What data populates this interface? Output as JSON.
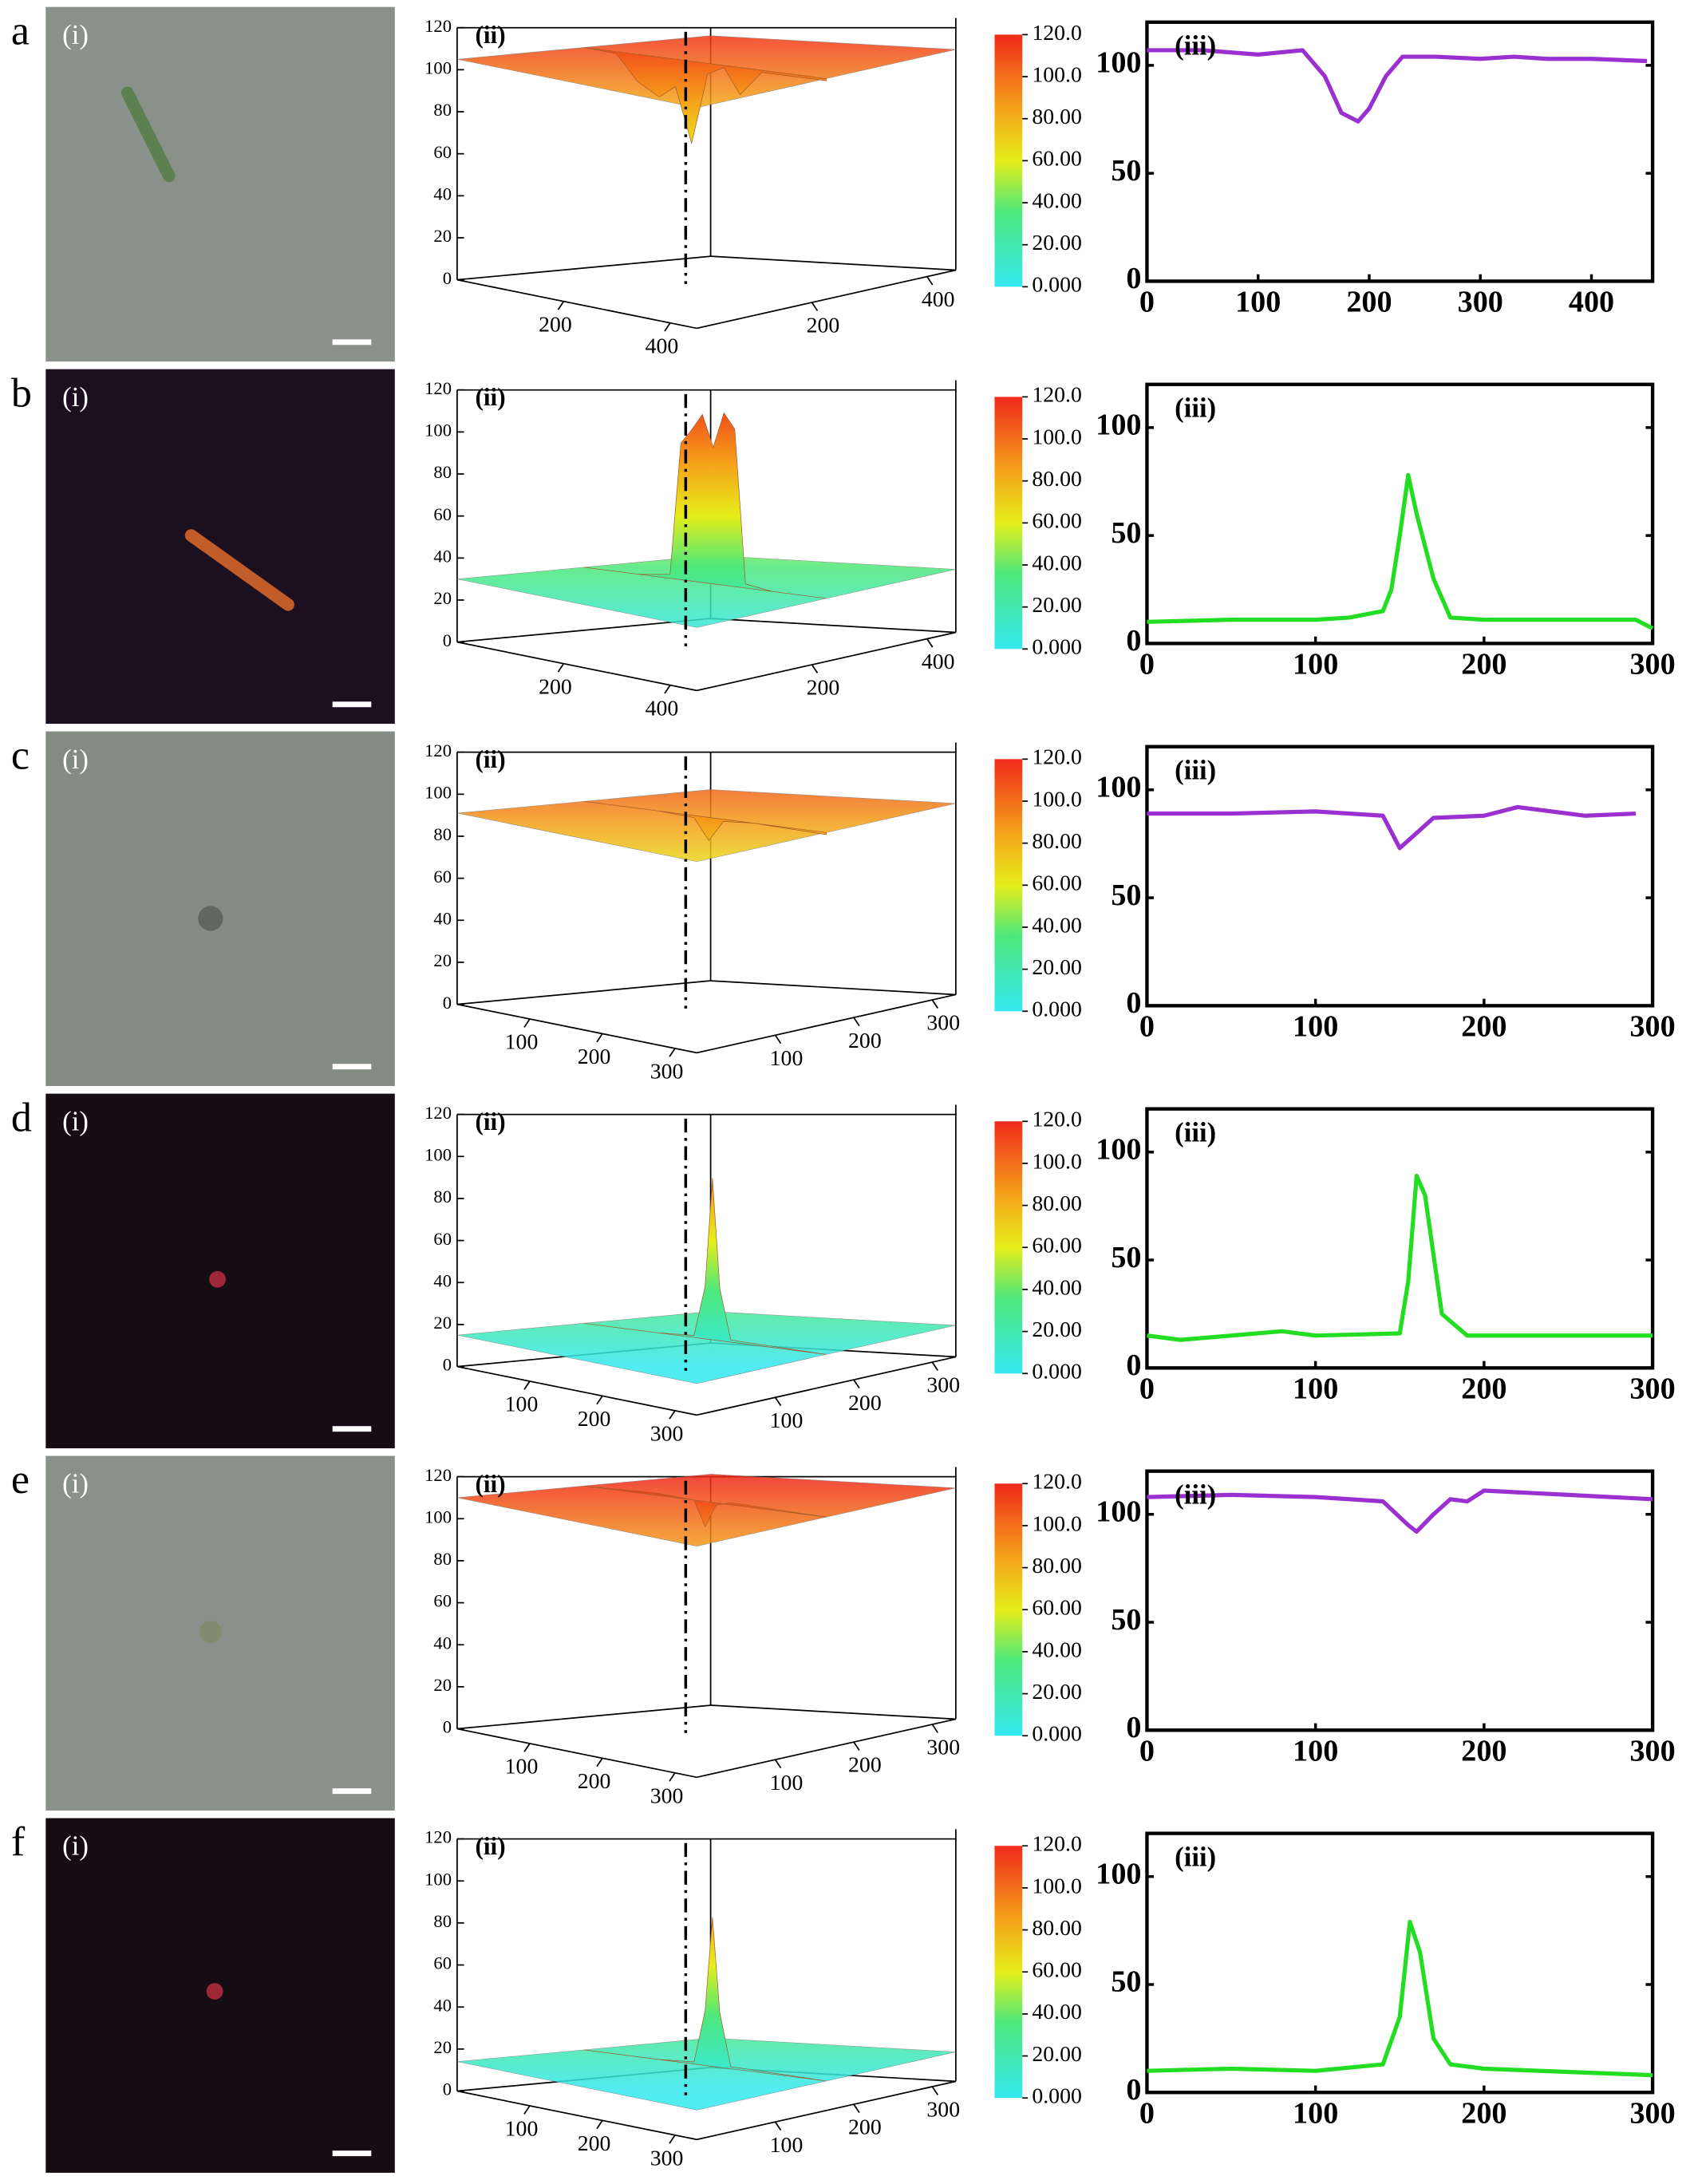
{
  "rows": [
    {
      "label": "a",
      "image": {
        "label": "(i)",
        "background": "#8a908a"
      }
    },
    {
      "label": "b",
      "image": {
        "label": "(i)",
        "background": "#1c1020"
      }
    },
    {
      "label": "c",
      "image": {
        "label": "(i)",
        "background": "#848a84"
      }
    },
    {
      "label": "d",
      "image": {
        "label": "(i)",
        "background": "#160c14"
      }
    },
    {
      "label": "e",
      "image": {
        "label": "(i)",
        "background": "#8a908a"
      }
    },
    {
      "label": "f",
      "image": {
        "label": "(i)",
        "background": "#160c14"
      }
    }
  ],
  "chart_data": [
    {
      "type": "surface",
      "label": "(ii)",
      "x": [
        0,
        60,
        100,
        140,
        170,
        200,
        230,
        260,
        290,
        330,
        450
      ],
      "values": [
        105,
        104,
        92,
        86,
        92,
        66,
        100,
        104,
        92,
        104,
        104
      ],
      "zlim": [
        0,
        120
      ],
      "zticks": [
        0,
        20,
        40,
        60,
        80,
        100,
        120
      ],
      "xlim": [
        0,
        450
      ],
      "xticks": [
        200,
        400
      ],
      "ylim": [
        0,
        450
      ],
      "yticks": [
        200,
        400
      ],
      "colorbar_ticks": [
        {
          "value": 120,
          "label": "120.0"
        },
        {
          "value": 100,
          "label": "100.0"
        },
        {
          "value": 80,
          "label": "80.00"
        },
        {
          "value": 60,
          "label": "60.00"
        },
        {
          "value": 40,
          "label": "40.00"
        },
        {
          "value": 20,
          "label": "20.00"
        },
        {
          "value": 0,
          "label": "0.000"
        }
      ]
    },
    {
      "type": "line",
      "label": "(iii)",
      "x": [
        0,
        50,
        100,
        140,
        160,
        175,
        190,
        200,
        215,
        230,
        260,
        300,
        330,
        360,
        400,
        450
      ],
      "series": [
        {
          "color": "#9b30d0",
          "values": [
            107,
            107,
            105,
            107,
            95,
            78,
            74,
            80,
            95,
            104,
            104,
            103,
            104,
            103,
            103,
            102
          ]
        }
      ],
      "xlim": [
        0,
        455
      ],
      "xticks": [
        0,
        100,
        200,
        300,
        400
      ],
      "ylim": [
        0,
        120
      ],
      "yticks": [
        0,
        50,
        100
      ]
    },
    {
      "type": "surface",
      "label": "(ii)",
      "x": [
        0,
        100,
        160,
        180,
        200,
        220,
        240,
        260,
        280,
        300,
        350,
        450
      ],
      "values": [
        30,
        30,
        32,
        95,
        102,
        110,
        95,
        112,
        105,
        32,
        30,
        30
      ],
      "zlim": [
        0,
        120
      ],
      "zticks": [
        0,
        20,
        40,
        60,
        80,
        100,
        120
      ],
      "xlim": [
        0,
        450
      ],
      "xticks": [
        200,
        400
      ],
      "ylim": [
        0,
        450
      ],
      "yticks": [
        200,
        400
      ],
      "colorbar_ticks": [
        {
          "value": 120,
          "label": "120.0"
        },
        {
          "value": 100,
          "label": "100.0"
        },
        {
          "value": 80,
          "label": "80.00"
        },
        {
          "value": 60,
          "label": "60.00"
        },
        {
          "value": 40,
          "label": "40.00"
        },
        {
          "value": 20,
          "label": "20.00"
        },
        {
          "value": 0,
          "label": "0.000"
        }
      ]
    },
    {
      "type": "line",
      "label": "(iii)",
      "x": [
        0,
        50,
        100,
        120,
        140,
        145,
        150,
        155,
        160,
        170,
        180,
        200,
        250,
        290,
        300
      ],
      "series": [
        {
          "color": "#22dd22",
          "values": [
            10,
            11,
            11,
            12,
            15,
            25,
            50,
            78,
            60,
            30,
            12,
            11,
            11,
            11,
            7
          ]
        }
      ],
      "xlim": [
        0,
        300
      ],
      "xticks": [
        0,
        100,
        200,
        300
      ],
      "ylim": [
        0,
        120
      ],
      "yticks": [
        0,
        50,
        100
      ]
    },
    {
      "type": "surface",
      "label": "(ii)",
      "x": [
        0,
        100,
        150,
        170,
        190,
        230,
        330
      ],
      "values": [
        91,
        91,
        90,
        80,
        90,
        91,
        90
      ],
      "zlim": [
        0,
        120
      ],
      "zticks": [
        0,
        20,
        40,
        60,
        80,
        100,
        120
      ],
      "xlim": [
        0,
        330
      ],
      "xticks": [
        100,
        200,
        300
      ],
      "ylim": [
        0,
        330
      ],
      "yticks": [
        100,
        200,
        300
      ],
      "colorbar_ticks": [
        {
          "value": 120,
          "label": "120.0"
        },
        {
          "value": 100,
          "label": "100.0"
        },
        {
          "value": 80,
          "label": "80.00"
        },
        {
          "value": 60,
          "label": "60.00"
        },
        {
          "value": 40,
          "label": "40.00"
        },
        {
          "value": 20,
          "label": "20.00"
        },
        {
          "value": 0,
          "label": "0.000"
        }
      ]
    },
    {
      "type": "line",
      "label": "(iii)",
      "x": [
        0,
        50,
        100,
        140,
        150,
        160,
        170,
        200,
        220,
        260,
        290
      ],
      "series": [
        {
          "color": "#9b30d0",
          "values": [
            89,
            89,
            90,
            88,
            73,
            80,
            87,
            88,
            92,
            88,
            89
          ]
        }
      ],
      "xlim": [
        0,
        300
      ],
      "xticks": [
        0,
        100,
        200,
        300
      ],
      "ylim": [
        0,
        120
      ],
      "yticks": [
        0,
        50,
        100
      ]
    },
    {
      "type": "surface",
      "label": "(ii)",
      "x": [
        0,
        100,
        150,
        165,
        175,
        185,
        200,
        330
      ],
      "values": [
        15,
        15,
        16,
        40,
        92,
        40,
        16,
        15
      ],
      "zlim": [
        0,
        120
      ],
      "zticks": [
        0,
        20,
        40,
        60,
        80,
        100,
        120
      ],
      "xlim": [
        0,
        330
      ],
      "xticks": [
        100,
        200,
        300
      ],
      "ylim": [
        0,
        330
      ],
      "yticks": [
        100,
        200,
        300
      ],
      "colorbar_ticks": [
        {
          "value": 120,
          "label": "120.0"
        },
        {
          "value": 100,
          "label": "100.0"
        },
        {
          "value": 80,
          "label": "80.00"
        },
        {
          "value": 60,
          "label": "60.00"
        },
        {
          "value": 40,
          "label": "40.00"
        },
        {
          "value": 20,
          "label": "20.00"
        },
        {
          "value": 0,
          "label": "0.000"
        }
      ]
    },
    {
      "type": "line",
      "label": "(iii)",
      "x": [
        0,
        20,
        50,
        80,
        100,
        150,
        155,
        160,
        165,
        175,
        190,
        250,
        300
      ],
      "series": [
        {
          "color": "#22dd22",
          "values": [
            15,
            13,
            15,
            17,
            15,
            16,
            40,
            89,
            80,
            25,
            15,
            15,
            15
          ]
        }
      ],
      "xlim": [
        0,
        300
      ],
      "xticks": [
        0,
        100,
        200,
        300
      ],
      "ylim": [
        0,
        120
      ],
      "yticks": [
        0,
        50,
        100
      ]
    },
    {
      "type": "surface",
      "label": "(ii)",
      "x": [
        0,
        100,
        150,
        165,
        180,
        200,
        330
      ],
      "values": [
        110,
        111,
        110,
        98,
        109,
        111,
        110
      ],
      "zlim": [
        0,
        120
      ],
      "zticks": [
        0,
        20,
        40,
        60,
        80,
        100,
        120
      ],
      "xlim": [
        0,
        330
      ],
      "xticks": [
        100,
        200,
        300
      ],
      "ylim": [
        0,
        330
      ],
      "yticks": [
        100,
        200,
        300
      ],
      "colorbar_ticks": [
        {
          "value": 120,
          "label": "120.0"
        },
        {
          "value": 100,
          "label": "100.0"
        },
        {
          "value": 80,
          "label": "80.00"
        },
        {
          "value": 60,
          "label": "60.00"
        },
        {
          "value": 40,
          "label": "40.00"
        },
        {
          "value": 20,
          "label": "20.00"
        },
        {
          "value": 0,
          "label": "0.000"
        }
      ]
    },
    {
      "type": "line",
      "label": "(iii)",
      "x": [
        0,
        50,
        100,
        140,
        155,
        160,
        170,
        180,
        190,
        200,
        250,
        300
      ],
      "series": [
        {
          "color": "#9b30d0",
          "values": [
            108,
            109,
            108,
            106,
            95,
            92,
            100,
            107,
            106,
            111,
            109,
            107
          ]
        }
      ],
      "xlim": [
        0,
        300
      ],
      "xticks": [
        0,
        100,
        200,
        300
      ],
      "ylim": [
        0,
        120
      ],
      "yticks": [
        0,
        50,
        100
      ]
    },
    {
      "type": "surface",
      "label": "(ii)",
      "x": [
        0,
        100,
        150,
        165,
        175,
        185,
        200,
        330
      ],
      "values": [
        14,
        14,
        15,
        40,
        85,
        40,
        15,
        14
      ],
      "zlim": [
        0,
        120
      ],
      "zticks": [
        0,
        20,
        40,
        60,
        80,
        100,
        120
      ],
      "xlim": [
        0,
        330
      ],
      "xticks": [
        100,
        200,
        300
      ],
      "ylim": [
        0,
        330
      ],
      "yticks": [
        100,
        200,
        300
      ],
      "colorbar_ticks": [
        {
          "value": 120,
          "label": "120.0"
        },
        {
          "value": 100,
          "label": "100.0"
        },
        {
          "value": 80,
          "label": "80.00"
        },
        {
          "value": 60,
          "label": "60.00"
        },
        {
          "value": 40,
          "label": "40.00"
        },
        {
          "value": 20,
          "label": "20.00"
        },
        {
          "value": 0,
          "label": "0.000"
        }
      ]
    },
    {
      "type": "line",
      "label": "(iii)",
      "x": [
        0,
        50,
        100,
        140,
        150,
        156,
        162,
        170,
        180,
        200,
        300
      ],
      "series": [
        {
          "color": "#22dd22",
          "values": [
            10,
            11,
            10,
            13,
            35,
            79,
            65,
            25,
            13,
            11,
            8
          ]
        }
      ],
      "xlim": [
        0,
        300
      ],
      "xticks": [
        0,
        100,
        200,
        300
      ],
      "ylim": [
        0,
        120
      ],
      "yticks": [
        0,
        50,
        100
      ]
    }
  ]
}
